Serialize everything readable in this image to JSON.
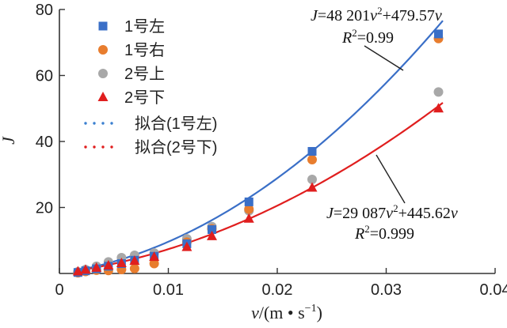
{
  "chart_data": {
    "type": "scatter",
    "xlabel_parts": [
      "v",
      "/(m • s",
      "−1",
      ")"
    ],
    "ylabel": "J",
    "xlim": [
      0,
      0.04
    ],
    "ylim": [
      0,
      80
    ],
    "xticks": [
      0,
      0.01,
      0.02,
      0.03,
      0.04
    ],
    "xtick_labels": [
      "0",
      "0.01",
      "0.02",
      "0.03",
      "0.04"
    ],
    "yticks": [
      20,
      40,
      60,
      80
    ],
    "ytick_labels": [
      "20",
      "40",
      "60",
      "80"
    ],
    "series": [
      {
        "name": "1号左",
        "marker": "square",
        "color": "#3a6fc7",
        "points": [
          [
            0.0017,
            0.3
          ],
          [
            0.0024,
            0.8
          ],
          [
            0.0034,
            1.4
          ],
          [
            0.0045,
            2.2
          ],
          [
            0.0057,
            3.0
          ],
          [
            0.0069,
            4.0
          ],
          [
            0.0087,
            5.2
          ],
          [
            0.0117,
            9.0
          ],
          [
            0.014,
            13.3
          ],
          [
            0.0174,
            21.7
          ],
          [
            0.0232,
            37.0
          ],
          [
            0.0348,
            72.6
          ]
        ]
      },
      {
        "name": "1号右",
        "marker": "circle",
        "color": "#e87d2e",
        "points": [
          [
            0.0017,
            0.2
          ],
          [
            0.0024,
            0.6
          ],
          [
            0.0034,
            1.0
          ],
          [
            0.0045,
            0.9
          ],
          [
            0.0057,
            1.2
          ],
          [
            0.0069,
            1.5
          ],
          [
            0.0087,
            3.0
          ],
          [
            0.0117,
            9.5
          ],
          [
            0.014,
            13.5
          ],
          [
            0.0174,
            19.5
          ],
          [
            0.0232,
            34.5
          ],
          [
            0.0348,
            71.2
          ]
        ]
      },
      {
        "name": "2号上",
        "marker": "circle",
        "color": "#a8a8a8",
        "points": [
          [
            0.0017,
            0.5
          ],
          [
            0.0024,
            1.2
          ],
          [
            0.0034,
            2.2
          ],
          [
            0.0045,
            3.5
          ],
          [
            0.0057,
            4.8
          ],
          [
            0.0069,
            5.5
          ],
          [
            0.0087,
            6.2
          ],
          [
            0.0117,
            10.5
          ],
          [
            0.014,
            14.2
          ],
          [
            0.0174,
            19.0
          ],
          [
            0.0232,
            28.5
          ],
          [
            0.0348,
            55.0
          ]
        ]
      },
      {
        "name": "2号下",
        "marker": "triangle",
        "color": "#e01e1e",
        "points": [
          [
            0.0017,
            0.6
          ],
          [
            0.0024,
            1.1
          ],
          [
            0.0034,
            1.7
          ],
          [
            0.0045,
            2.4
          ],
          [
            0.0057,
            3.1
          ],
          [
            0.0069,
            3.8
          ],
          [
            0.0087,
            5.0
          ],
          [
            0.0117,
            8.0
          ],
          [
            0.014,
            11.3
          ],
          [
            0.0174,
            16.6
          ],
          [
            0.0232,
            26.0
          ],
          [
            0.0348,
            50.0
          ]
        ]
      }
    ],
    "fits": [
      {
        "name": "拟合(1号左)",
        "a": 48201,
        "b": 479.57,
        "color": "#3a6fc7",
        "legend_color": "#3a7fd0",
        "eq_parts": [
          "J",
          "=48 201",
          "v",
          "2",
          "+479.57",
          "v"
        ],
        "r2_parts": [
          "R",
          "2",
          "=0.99"
        ]
      },
      {
        "name": "拟合(2号下)",
        "a": 29087,
        "b": 445.62,
        "color": "#e01e1e",
        "legend_color": "#e01e1e",
        "eq_parts": [
          "J",
          "=29 087",
          "v",
          "2",
          "+445.62",
          "v"
        ],
        "r2_parts": [
          "R",
          "2",
          "=0.999"
        ]
      }
    ]
  }
}
